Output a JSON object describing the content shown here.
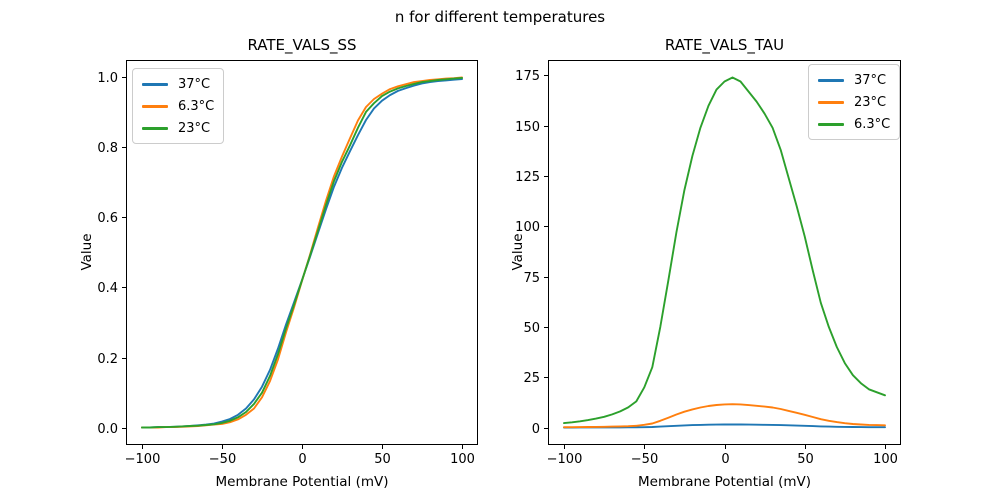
{
  "figure": {
    "suptitle": "n for different temperatures",
    "background_color": "#ffffff"
  },
  "colors": {
    "blue": "#1f77b4",
    "orange": "#ff7f0e",
    "green": "#2ca02c",
    "legend_border": "#cccccc",
    "axis": "#000000"
  },
  "chart_data": [
    {
      "type": "line",
      "title": "RATE_VALS_SS",
      "xlabel": "Membrane Potential (mV)",
      "ylabel": "Value",
      "grid": false,
      "legend_position": "upper left",
      "xlim": [
        -110,
        110
      ],
      "ylim": [
        -0.049,
        1.048
      ],
      "xticks": [
        -100,
        -50,
        0,
        50,
        100
      ],
      "xtick_labels": [
        "−100",
        "−50",
        "0",
        "50",
        "100"
      ],
      "yticks": [
        0,
        0.2,
        0.4,
        0.6,
        0.8,
        1.0
      ],
      "ytick_labels": [
        "0.0",
        "0.2",
        "0.4",
        "0.6",
        "0.8",
        "1.0"
      ],
      "x": [
        -100,
        -95,
        -90,
        -85,
        -80,
        -75,
        -70,
        -65,
        -60,
        -55,
        -50,
        -45,
        -40,
        -35,
        -30,
        -25,
        -20,
        -15,
        -10,
        -5,
        0,
        5,
        10,
        15,
        20,
        25,
        30,
        35,
        40,
        45,
        50,
        55,
        60,
        65,
        70,
        75,
        80,
        85,
        90,
        95,
        100
      ],
      "series": [
        {
          "name": "37°C",
          "color": "#1f77b4",
          "values": [
            0.001,
            0.001,
            0.002,
            0.002,
            0.003,
            0.004,
            0.005,
            0.007,
            0.009,
            0.012,
            0.018,
            0.025,
            0.037,
            0.055,
            0.081,
            0.117,
            0.165,
            0.226,
            0.294,
            0.357,
            0.421,
            0.487,
            0.555,
            0.623,
            0.687,
            0.741,
            0.788,
            0.834,
            0.877,
            0.91,
            0.932,
            0.948,
            0.96,
            0.968,
            0.975,
            0.981,
            0.985,
            0.988,
            0.99,
            0.992,
            0.994
          ]
        },
        {
          "name": "6.3°C",
          "color": "#ff7f0e",
          "values": [
            0.001,
            0.001,
            0.001,
            0.002,
            0.002,
            0.003,
            0.004,
            0.005,
            0.007,
            0.009,
            0.011,
            0.016,
            0.024,
            0.037,
            0.055,
            0.087,
            0.133,
            0.195,
            0.272,
            0.343,
            0.419,
            0.493,
            0.571,
            0.647,
            0.717,
            0.773,
            0.825,
            0.876,
            0.914,
            0.937,
            0.952,
            0.965,
            0.973,
            0.979,
            0.985,
            0.988,
            0.991,
            0.993,
            0.995,
            0.996,
            0.998
          ]
        },
        {
          "name": "23°C",
          "color": "#2ca02c",
          "values": [
            0.001,
            0.001,
            0.002,
            0.002,
            0.003,
            0.004,
            0.005,
            0.006,
            0.008,
            0.01,
            0.014,
            0.02,
            0.03,
            0.045,
            0.068,
            0.1,
            0.148,
            0.21,
            0.283,
            0.35,
            0.42,
            0.49,
            0.562,
            0.635,
            0.703,
            0.758,
            0.805,
            0.855,
            0.9,
            0.925,
            0.945,
            0.958,
            0.967,
            0.974,
            0.98,
            0.985,
            0.988,
            0.991,
            0.993,
            0.995,
            0.997
          ]
        }
      ]
    },
    {
      "type": "line",
      "title": "RATE_VALS_TAU",
      "xlabel": "Membrane Potential (mV)",
      "ylabel": "Value",
      "grid": false,
      "legend_position": "upper right",
      "xlim": [
        -110,
        110
      ],
      "ylim": [
        -8.7,
        182.7
      ],
      "xticks": [
        -100,
        -50,
        0,
        50,
        100
      ],
      "xtick_labels": [
        "−100",
        "−50",
        "0",
        "50",
        "100"
      ],
      "yticks": [
        0,
        25,
        50,
        75,
        100,
        125,
        150,
        175
      ],
      "ytick_labels": [
        "0",
        "25",
        "50",
        "75",
        "100",
        "125",
        "150",
        "175"
      ],
      "x": [
        -100,
        -95,
        -90,
        -85,
        -80,
        -75,
        -70,
        -65,
        -60,
        -55,
        -50,
        -45,
        -40,
        -35,
        -30,
        -25,
        -20,
        -15,
        -10,
        -5,
        0,
        5,
        10,
        15,
        20,
        25,
        30,
        35,
        40,
        45,
        50,
        55,
        60,
        65,
        70,
        75,
        80,
        85,
        90,
        95,
        100
      ],
      "series": [
        {
          "name": "37°C",
          "color": "#1f77b4",
          "values": [
            0.02,
            0.02,
            0.03,
            0.03,
            0.04,
            0.05,
            0.06,
            0.07,
            0.09,
            0.11,
            0.17,
            0.26,
            0.43,
            0.63,
            0.84,
            1.03,
            1.17,
            1.3,
            1.39,
            1.46,
            1.5,
            1.51,
            1.5,
            1.45,
            1.41,
            1.36,
            1.3,
            1.2,
            1.08,
            0.96,
            0.83,
            0.68,
            0.54,
            0.43,
            0.35,
            0.28,
            0.23,
            0.19,
            0.17,
            0.15,
            0.14
          ]
        },
        {
          "name": "23°C",
          "color": "#ff7f0e",
          "values": [
            0.15,
            0.17,
            0.21,
            0.25,
            0.29,
            0.35,
            0.43,
            0.53,
            0.67,
            0.87,
            1.33,
            2.0,
            3.33,
            4.87,
            6.47,
            7.87,
            9.0,
            9.93,
            10.67,
            11.2,
            11.47,
            11.6,
            11.47,
            11.13,
            10.8,
            10.4,
            9.93,
            9.2,
            8.27,
            7.33,
            6.33,
            5.2,
            4.13,
            3.33,
            2.67,
            2.13,
            1.73,
            1.47,
            1.27,
            1.17,
            1.07
          ]
        },
        {
          "name": "6.3°C",
          "color": "#2ca02c",
          "values": [
            2.2,
            2.6,
            3.1,
            3.7,
            4.4,
            5.3,
            6.5,
            8.0,
            10.0,
            13.0,
            20.0,
            30.0,
            50.0,
            73.0,
            97.0,
            118.0,
            135.0,
            149.0,
            160.0,
            168.0,
            172.0,
            174.0,
            172.0,
            167.0,
            162.0,
            156.0,
            149.0,
            138.0,
            124.0,
            110.0,
            95.0,
            78.0,
            62.0,
            50.0,
            40.0,
            32.0,
            26.0,
            22.0,
            19.0,
            17.5,
            16.0
          ]
        }
      ]
    }
  ]
}
